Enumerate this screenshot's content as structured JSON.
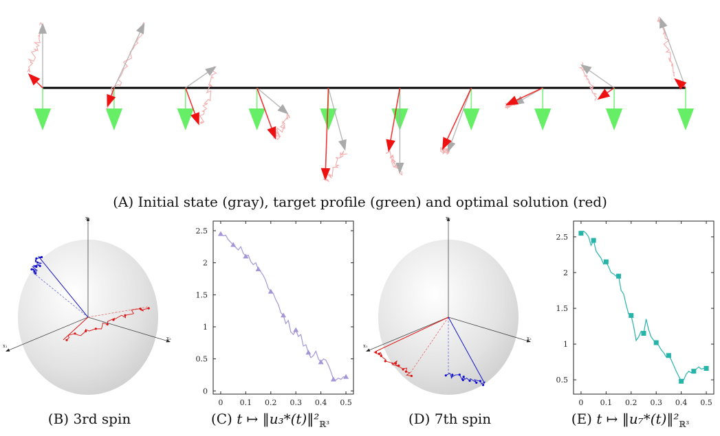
{
  "top_panel": {
    "caption_tag": "(A)",
    "caption_text": "Initial state (gray), target profile (green) and optimal solution (red)",
    "colors": {
      "initial": "#aaaaaa",
      "target": "#66ee66",
      "optimal": "#ee1111",
      "trace": "#f4b0b0",
      "chain": "#000000"
    },
    "spins": [
      {
        "gray_angle": 90,
        "gray_len": 95,
        "red_angle": 135,
        "red_len": 30
      },
      {
        "gray_angle": 65,
        "gray_len": 105,
        "red_angle": 250,
        "red_len": 30
      },
      {
        "gray_angle": 35,
        "gray_len": 55,
        "red_angle": 290,
        "red_len": 58
      },
      {
        "gray_angle": 320,
        "gray_len": 60,
        "red_angle": 290,
        "red_len": 80
      },
      {
        "gray_angle": 285,
        "gray_len": 95,
        "red_angle": 268,
        "red_len": 135
      },
      {
        "gray_angle": 270,
        "gray_len": 125,
        "red_angle": 260,
        "red_len": 95
      },
      {
        "gray_angle": 250,
        "gray_len": 100,
        "red_angle": 245,
        "red_len": 100
      },
      {
        "gray_angle": 210,
        "gray_len": 50,
        "red_angle": 205,
        "red_len": 60
      },
      {
        "gray_angle": 145,
        "gray_len": 60,
        "red_angle": 215,
        "red_len": 30
      },
      {
        "gray_angle": 110,
        "gray_len": 110,
        "red_angle": 140,
        "red_len": 22
      }
    ]
  },
  "sphere_b": {
    "caption_tag": "(B)",
    "caption_text": "3rd spin",
    "axis_labels": {
      "x1": "x₁",
      "x2": "x₂",
      "x3": "x₃"
    },
    "colors": {
      "target_vec": "#1010cc",
      "state_vec": "#dd1111",
      "sphere": "#e2e2e2"
    }
  },
  "sphere_d": {
    "caption_tag": "(D)",
    "caption_text": "7th spin",
    "axis_labels": {
      "x1": "x₁",
      "x2": "x₂",
      "x3": "x₃"
    },
    "colors": {
      "target_vec": "#1010cc",
      "state_vec": "#dd1111",
      "sphere": "#e2e2e2"
    }
  },
  "chart_data": [
    {
      "type": "line",
      "caption_tag": "(C)",
      "caption_text": "t ↦ ‖u₃*(t)‖²",
      "caption_sub": "ℝ³",
      "color": "#a395d6",
      "marker": "triangle",
      "x": [
        0,
        0.01,
        0.02,
        0.03,
        0.04,
        0.05,
        0.06,
        0.07,
        0.08,
        0.09,
        0.1,
        0.11,
        0.12,
        0.13,
        0.14,
        0.15,
        0.16,
        0.17,
        0.18,
        0.19,
        0.2,
        0.21,
        0.22,
        0.23,
        0.24,
        0.25,
        0.26,
        0.27,
        0.28,
        0.29,
        0.3,
        0.31,
        0.32,
        0.33,
        0.34,
        0.35,
        0.36,
        0.37,
        0.38,
        0.39,
        0.4,
        0.41,
        0.42,
        0.43,
        0.44,
        0.45,
        0.46,
        0.47,
        0.48,
        0.49,
        0.5
      ],
      "y": [
        2.45,
        2.42,
        2.43,
        2.36,
        2.32,
        2.28,
        2.24,
        2.2,
        2.25,
        2.15,
        2.1,
        2.12,
        2.02,
        1.97,
        2.0,
        1.9,
        1.86,
        1.8,
        1.72,
        1.6,
        1.55,
        1.52,
        1.42,
        1.35,
        1.22,
        1.18,
        1.05,
        1.1,
        0.92,
        0.88,
        0.95,
        0.85,
        0.88,
        0.7,
        0.72,
        0.6,
        0.52,
        0.55,
        0.62,
        0.5,
        0.45,
        0.5,
        0.48,
        0.4,
        0.3,
        0.18,
        0.17,
        0.2,
        0.18,
        0.22,
        0.22
      ],
      "markers_x": [
        0,
        0.05,
        0.1,
        0.15,
        0.2,
        0.25,
        0.3,
        0.35,
        0.4,
        0.45,
        0.5
      ],
      "markers_y": [
        2.45,
        2.28,
        2.1,
        1.9,
        1.55,
        1.18,
        0.95,
        0.6,
        0.45,
        0.18,
        0.22
      ],
      "xticks": [
        "0",
        "0.1",
        "0.2",
        "0.3",
        "0.4",
        "0.5"
      ],
      "yticks": [
        "0",
        "0.5",
        "1",
        "1.5",
        "2",
        "2.5"
      ],
      "xlim": [
        -0.03,
        0.53
      ],
      "ylim": [
        -0.05,
        2.65
      ],
      "grid": false
    },
    {
      "type": "line",
      "caption_tag": "(E)",
      "caption_text": "t ↦ ‖u₇*(t)‖²",
      "caption_sub": "ℝ³",
      "color": "#26b3a8",
      "marker": "square",
      "x": [
        0,
        0.01,
        0.02,
        0.03,
        0.04,
        0.05,
        0.06,
        0.07,
        0.08,
        0.09,
        0.1,
        0.11,
        0.12,
        0.13,
        0.14,
        0.15,
        0.16,
        0.17,
        0.18,
        0.19,
        0.2,
        0.21,
        0.22,
        0.23,
        0.24,
        0.25,
        0.26,
        0.27,
        0.28,
        0.29,
        0.3,
        0.31,
        0.32,
        0.33,
        0.34,
        0.35,
        0.36,
        0.37,
        0.38,
        0.39,
        0.4,
        0.41,
        0.42,
        0.43,
        0.44,
        0.45,
        0.46,
        0.47,
        0.48,
        0.49,
        0.5
      ],
      "y": [
        2.55,
        2.58,
        2.55,
        2.5,
        2.38,
        2.45,
        2.3,
        2.25,
        2.2,
        2.12,
        2.15,
        2.08,
        2.0,
        1.98,
        1.95,
        1.95,
        1.75,
        1.7,
        1.55,
        1.42,
        1.4,
        1.25,
        1.05,
        1.1,
        1.18,
        1.15,
        1.35,
        1.2,
        1.1,
        1.05,
        1.02,
        0.98,
        0.92,
        0.88,
        0.82,
        0.84,
        0.78,
        0.7,
        0.62,
        0.55,
        0.48,
        0.5,
        0.58,
        0.62,
        0.6,
        0.62,
        0.65,
        0.68,
        0.65,
        0.66,
        0.66
      ],
      "markers_x": [
        0,
        0.05,
        0.1,
        0.15,
        0.2,
        0.25,
        0.3,
        0.35,
        0.4,
        0.45,
        0.5
      ],
      "markers_y": [
        2.55,
        2.45,
        2.15,
        1.95,
        1.4,
        1.15,
        1.02,
        0.84,
        0.48,
        0.62,
        0.66
      ],
      "xticks": [
        "0",
        "0.1",
        "0.2",
        "0.3",
        "0.4",
        "0.5"
      ],
      "yticks": [
        "0.5",
        "1",
        "1.5",
        "2",
        "2.5"
      ],
      "xlim": [
        -0.03,
        0.53
      ],
      "ylim": [
        0.3,
        2.72
      ],
      "grid": false
    }
  ]
}
